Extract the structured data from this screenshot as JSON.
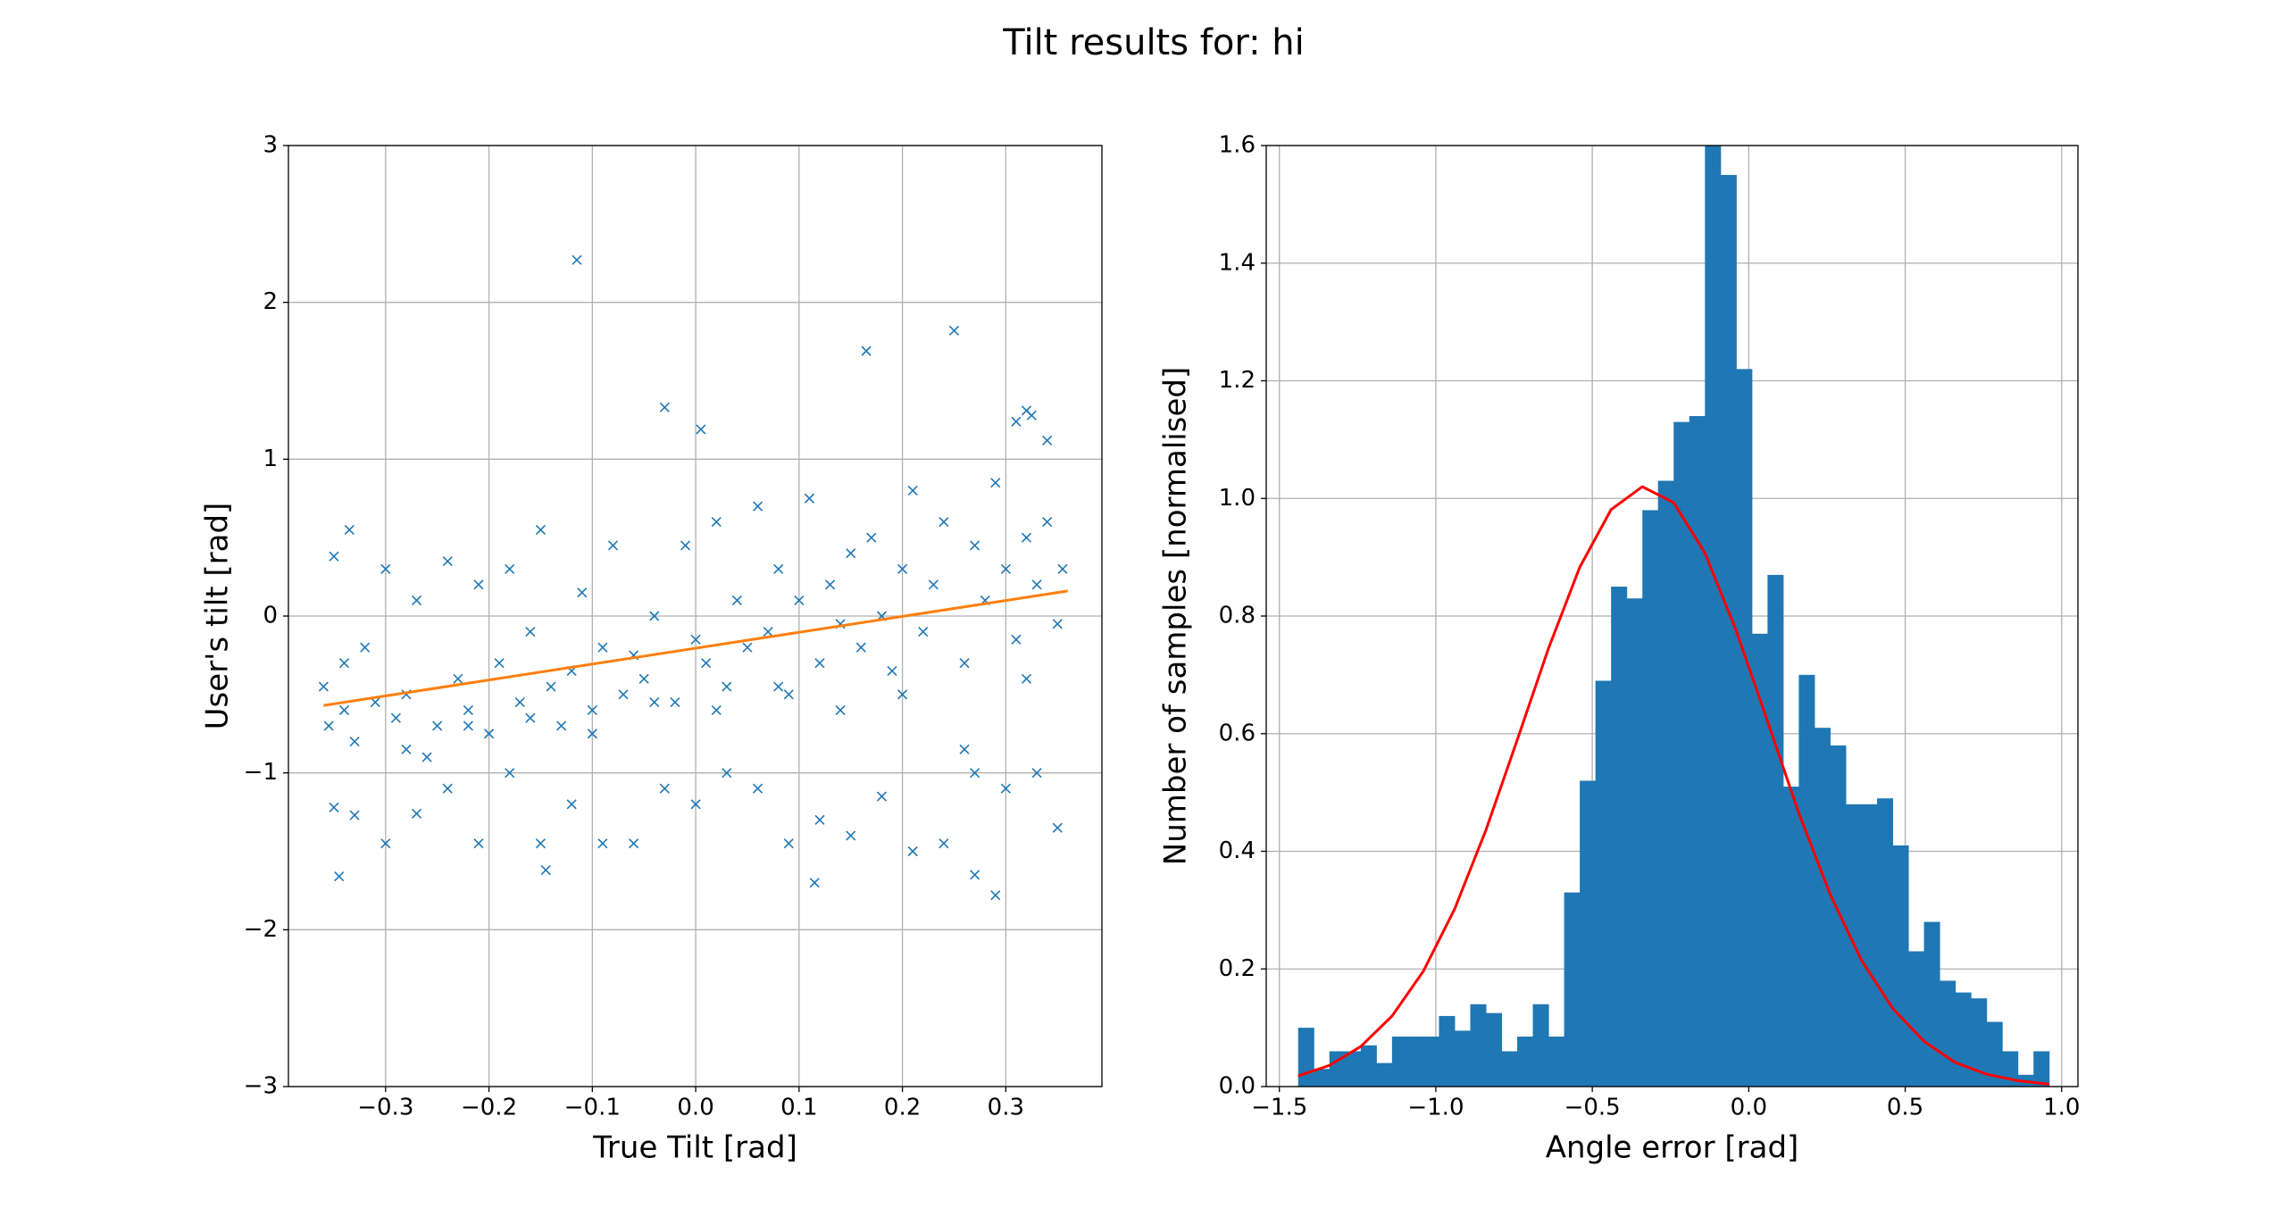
{
  "title": "Tilt results for: hi",
  "chart_data": [
    {
      "type": "scatter",
      "xlabel": "True Tilt [rad]",
      "ylabel": "User's tilt [rad]",
      "xlim": [
        -0.394,
        0.393
      ],
      "ylim": [
        -3,
        3
      ],
      "grid": true,
      "xticks": [
        {
          "value": -0.3,
          "label": "−0.3"
        },
        {
          "value": -0.2,
          "label": "−0.2"
        },
        {
          "value": -0.1,
          "label": "−0.1"
        },
        {
          "value": 0,
          "label": "0.0"
        },
        0.1,
        0.2,
        0.3
      ],
      "yticks": [
        {
          "value": -3,
          "label": "−3"
        },
        {
          "value": -2,
          "label": "−2"
        },
        {
          "value": -1,
          "label": "−1"
        },
        0,
        1,
        2,
        3
      ],
      "series": [
        {
          "mode": "markers",
          "marker": "x",
          "color": "#1f77b4",
          "x": [
            -0.115,
            -0.03,
            0.005,
            0.165,
            0.25,
            0.34,
            0.32,
            0.31,
            0.325,
            -0.345,
            0.115,
            0.29,
            -0.145,
            0.27,
            -0.36,
            -0.355,
            -0.35,
            -0.34,
            -0.335,
            -0.33,
            -0.32,
            -0.31,
            -0.3,
            -0.29,
            -0.28,
            -0.27,
            -0.26,
            -0.25,
            -0.24,
            -0.23,
            -0.22,
            -0.21,
            -0.2,
            -0.19,
            -0.18,
            -0.17,
            -0.16,
            -0.15,
            -0.14,
            -0.13,
            -0.12,
            -0.11,
            -0.1,
            -0.09,
            -0.08,
            -0.07,
            -0.06,
            -0.05,
            -0.04,
            -0.02,
            -0.01,
            0.0,
            0.01,
            0.02,
            0.03,
            0.04,
            0.05,
            0.06,
            0.07,
            0.08,
            0.09,
            0.1,
            0.11,
            0.12,
            0.13,
            0.14,
            0.15,
            0.16,
            0.17,
            0.18,
            0.19,
            0.2,
            0.21,
            0.22,
            0.23,
            0.24,
            0.26,
            0.27,
            0.28,
            0.29,
            0.3,
            0.31,
            0.32,
            0.33,
            0.34,
            0.35,
            0.355,
            -0.35,
            -0.33,
            -0.3,
            -0.27,
            -0.24,
            -0.21,
            -0.18,
            -0.15,
            -0.12,
            -0.09,
            -0.06,
            -0.03,
            0.0,
            0.03,
            0.06,
            0.09,
            0.12,
            0.15,
            0.18,
            0.21,
            0.24,
            0.27,
            0.3,
            0.33,
            0.35,
            -0.34,
            -0.28,
            -0.22,
            -0.16,
            -0.1,
            -0.04,
            0.02,
            0.08,
            0.14,
            0.2,
            0.26,
            0.32
          ],
          "y": [
            2.27,
            1.33,
            1.19,
            1.69,
            1.82,
            1.12,
            1.31,
            1.24,
            1.28,
            -1.66,
            -1.7,
            -1.78,
            -1.62,
            -1.65,
            -0.45,
            -0.7,
            0.38,
            -0.6,
            0.55,
            -0.8,
            -0.2,
            -0.55,
            0.3,
            -0.65,
            -0.5,
            0.1,
            -0.9,
            -0.7,
            0.35,
            -0.4,
            -0.6,
            0.2,
            -0.75,
            -0.3,
            0.3,
            -0.55,
            -0.1,
            0.55,
            -0.45,
            -0.7,
            -0.35,
            0.15,
            -0.6,
            -0.2,
            0.45,
            -0.5,
            -0.25,
            -0.4,
            0.0,
            -0.55,
            0.45,
            -0.15,
            -0.3,
            0.6,
            -0.45,
            0.1,
            -0.2,
            0.7,
            -0.1,
            0.3,
            -0.5,
            0.1,
            0.75,
            -0.3,
            0.2,
            -0.05,
            0.4,
            -0.2,
            0.5,
            0.0,
            -0.35,
            0.3,
            0.8,
            -0.1,
            0.2,
            0.6,
            -0.3,
            0.45,
            0.1,
            0.85,
            0.3,
            -0.15,
            0.5,
            0.2,
            0.6,
            -0.05,
            0.3,
            -1.22,
            -1.27,
            -1.45,
            -1.26,
            -1.1,
            -1.45,
            -1.0,
            -1.45,
            -1.2,
            -1.45,
            -1.45,
            -1.1,
            -1.2,
            -1.0,
            -1.1,
            -1.45,
            -1.3,
            -1.4,
            -1.15,
            -1.5,
            -1.45,
            -1.0,
            -1.1,
            -1.0,
            -1.35,
            -0.3,
            -0.85,
            -0.7,
            -0.65,
            -0.75,
            -0.55,
            -0.6,
            -0.45,
            -0.6,
            -0.5,
            -0.85,
            -0.4
          ]
        },
        {
          "mode": "line",
          "color": "#ff7f0e",
          "x": [
            -0.36,
            0.36
          ],
          "y": [
            -0.57,
            0.16
          ]
        }
      ]
    },
    {
      "type": "histogram",
      "xlabel": "Angle error [rad]",
      "ylabel": "Number of samples [normalised]",
      "xlim": [
        -1.542,
        1.052
      ],
      "ylim": [
        0,
        1.6
      ],
      "grid": true,
      "color": "#1f77b4",
      "xticks": [
        {
          "value": -1.5,
          "label": "−1.5"
        },
        {
          "value": -1.0,
          "label": "−1.0"
        },
        {
          "value": -0.5,
          "label": "−0.5"
        },
        {
          "value": 0,
          "label": "0.0"
        },
        0.5,
        {
          "value": 1,
          "label": "1.0"
        }
      ],
      "yticks": [
        {
          "value": 0,
          "label": "0.0"
        },
        0.2,
        0.4,
        0.6,
        0.8,
        {
          "value": 1,
          "label": "1.0"
        },
        1.2,
        1.4,
        1.6
      ],
      "bins": [
        -1.44,
        -1.39,
        -1.34,
        -1.29,
        -1.24,
        -1.19,
        -1.14,
        -1.09,
        -1.04,
        -0.99,
        -0.94,
        -0.89,
        -0.84,
        -0.79,
        -0.74,
        -0.69,
        -0.64,
        -0.59,
        -0.54,
        -0.49,
        -0.44,
        -0.39,
        -0.34,
        -0.29,
        -0.24,
        -0.19,
        -0.14,
        -0.09,
        -0.04,
        0.01,
        0.06,
        0.11,
        0.16,
        0.21,
        0.26,
        0.31,
        0.36,
        0.41,
        0.46,
        0.51,
        0.56,
        0.61,
        0.66,
        0.71,
        0.76,
        0.81,
        0.86,
        0.91,
        0.96
      ],
      "values": [
        0.1,
        0.03,
        0.06,
        0.06,
        0.07,
        0.04,
        0.085,
        0.085,
        0.085,
        0.12,
        0.095,
        0.14,
        0.125,
        0.06,
        0.085,
        0.14,
        0.085,
        0.33,
        0.52,
        0.69,
        0.85,
        0.83,
        0.98,
        1.03,
        1.13,
        1.14,
        1.6,
        1.55,
        1.22,
        0.77,
        0.87,
        0.51,
        0.7,
        0.61,
        0.58,
        0.48,
        0.48,
        0.49,
        0.41,
        0.23,
        0.28,
        0.18,
        0.16,
        0.15,
        0.11,
        0.06,
        0.02,
        0.06,
        0.07
      ],
      "curve": {
        "color": "#ff0000",
        "x": [
          -1.44,
          -1.34,
          -1.24,
          -1.14,
          -1.04,
          -0.94,
          -0.84,
          -0.74,
          -0.64,
          -0.54,
          -0.44,
          -0.34,
          -0.24,
          -0.14,
          -0.04,
          0.06,
          0.16,
          0.26,
          0.36,
          0.46,
          0.56,
          0.66,
          0.76,
          0.86,
          0.96
        ],
        "y": [
          0.018,
          0.036,
          0.068,
          0.12,
          0.196,
          0.302,
          0.436,
          0.589,
          0.745,
          0.883,
          0.981,
          1.02,
          0.993,
          0.907,
          0.775,
          0.621,
          0.465,
          0.327,
          0.215,
          0.133,
          0.077,
          0.041,
          0.021,
          0.01,
          0.004
        ]
      }
    }
  ]
}
